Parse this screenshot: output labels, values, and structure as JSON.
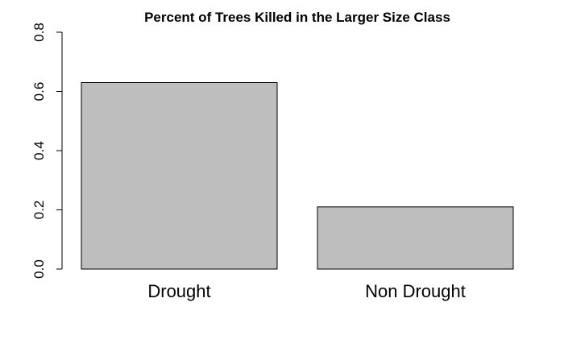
{
  "chart_data": {
    "type": "bar",
    "title": "Percent of Trees Killed in the Larger Size Class",
    "xlabel": "",
    "ylabel": "",
    "categories": [
      "Drought",
      "Non Drought"
    ],
    "values": [
      0.63,
      0.21
    ],
    "ylim": [
      0,
      0.8
    ],
    "yticks": [
      "0.0",
      "0.2",
      "0.4",
      "0.6",
      "0.8"
    ],
    "grid": false,
    "legend": "none",
    "bar_color": "#bebebe"
  }
}
